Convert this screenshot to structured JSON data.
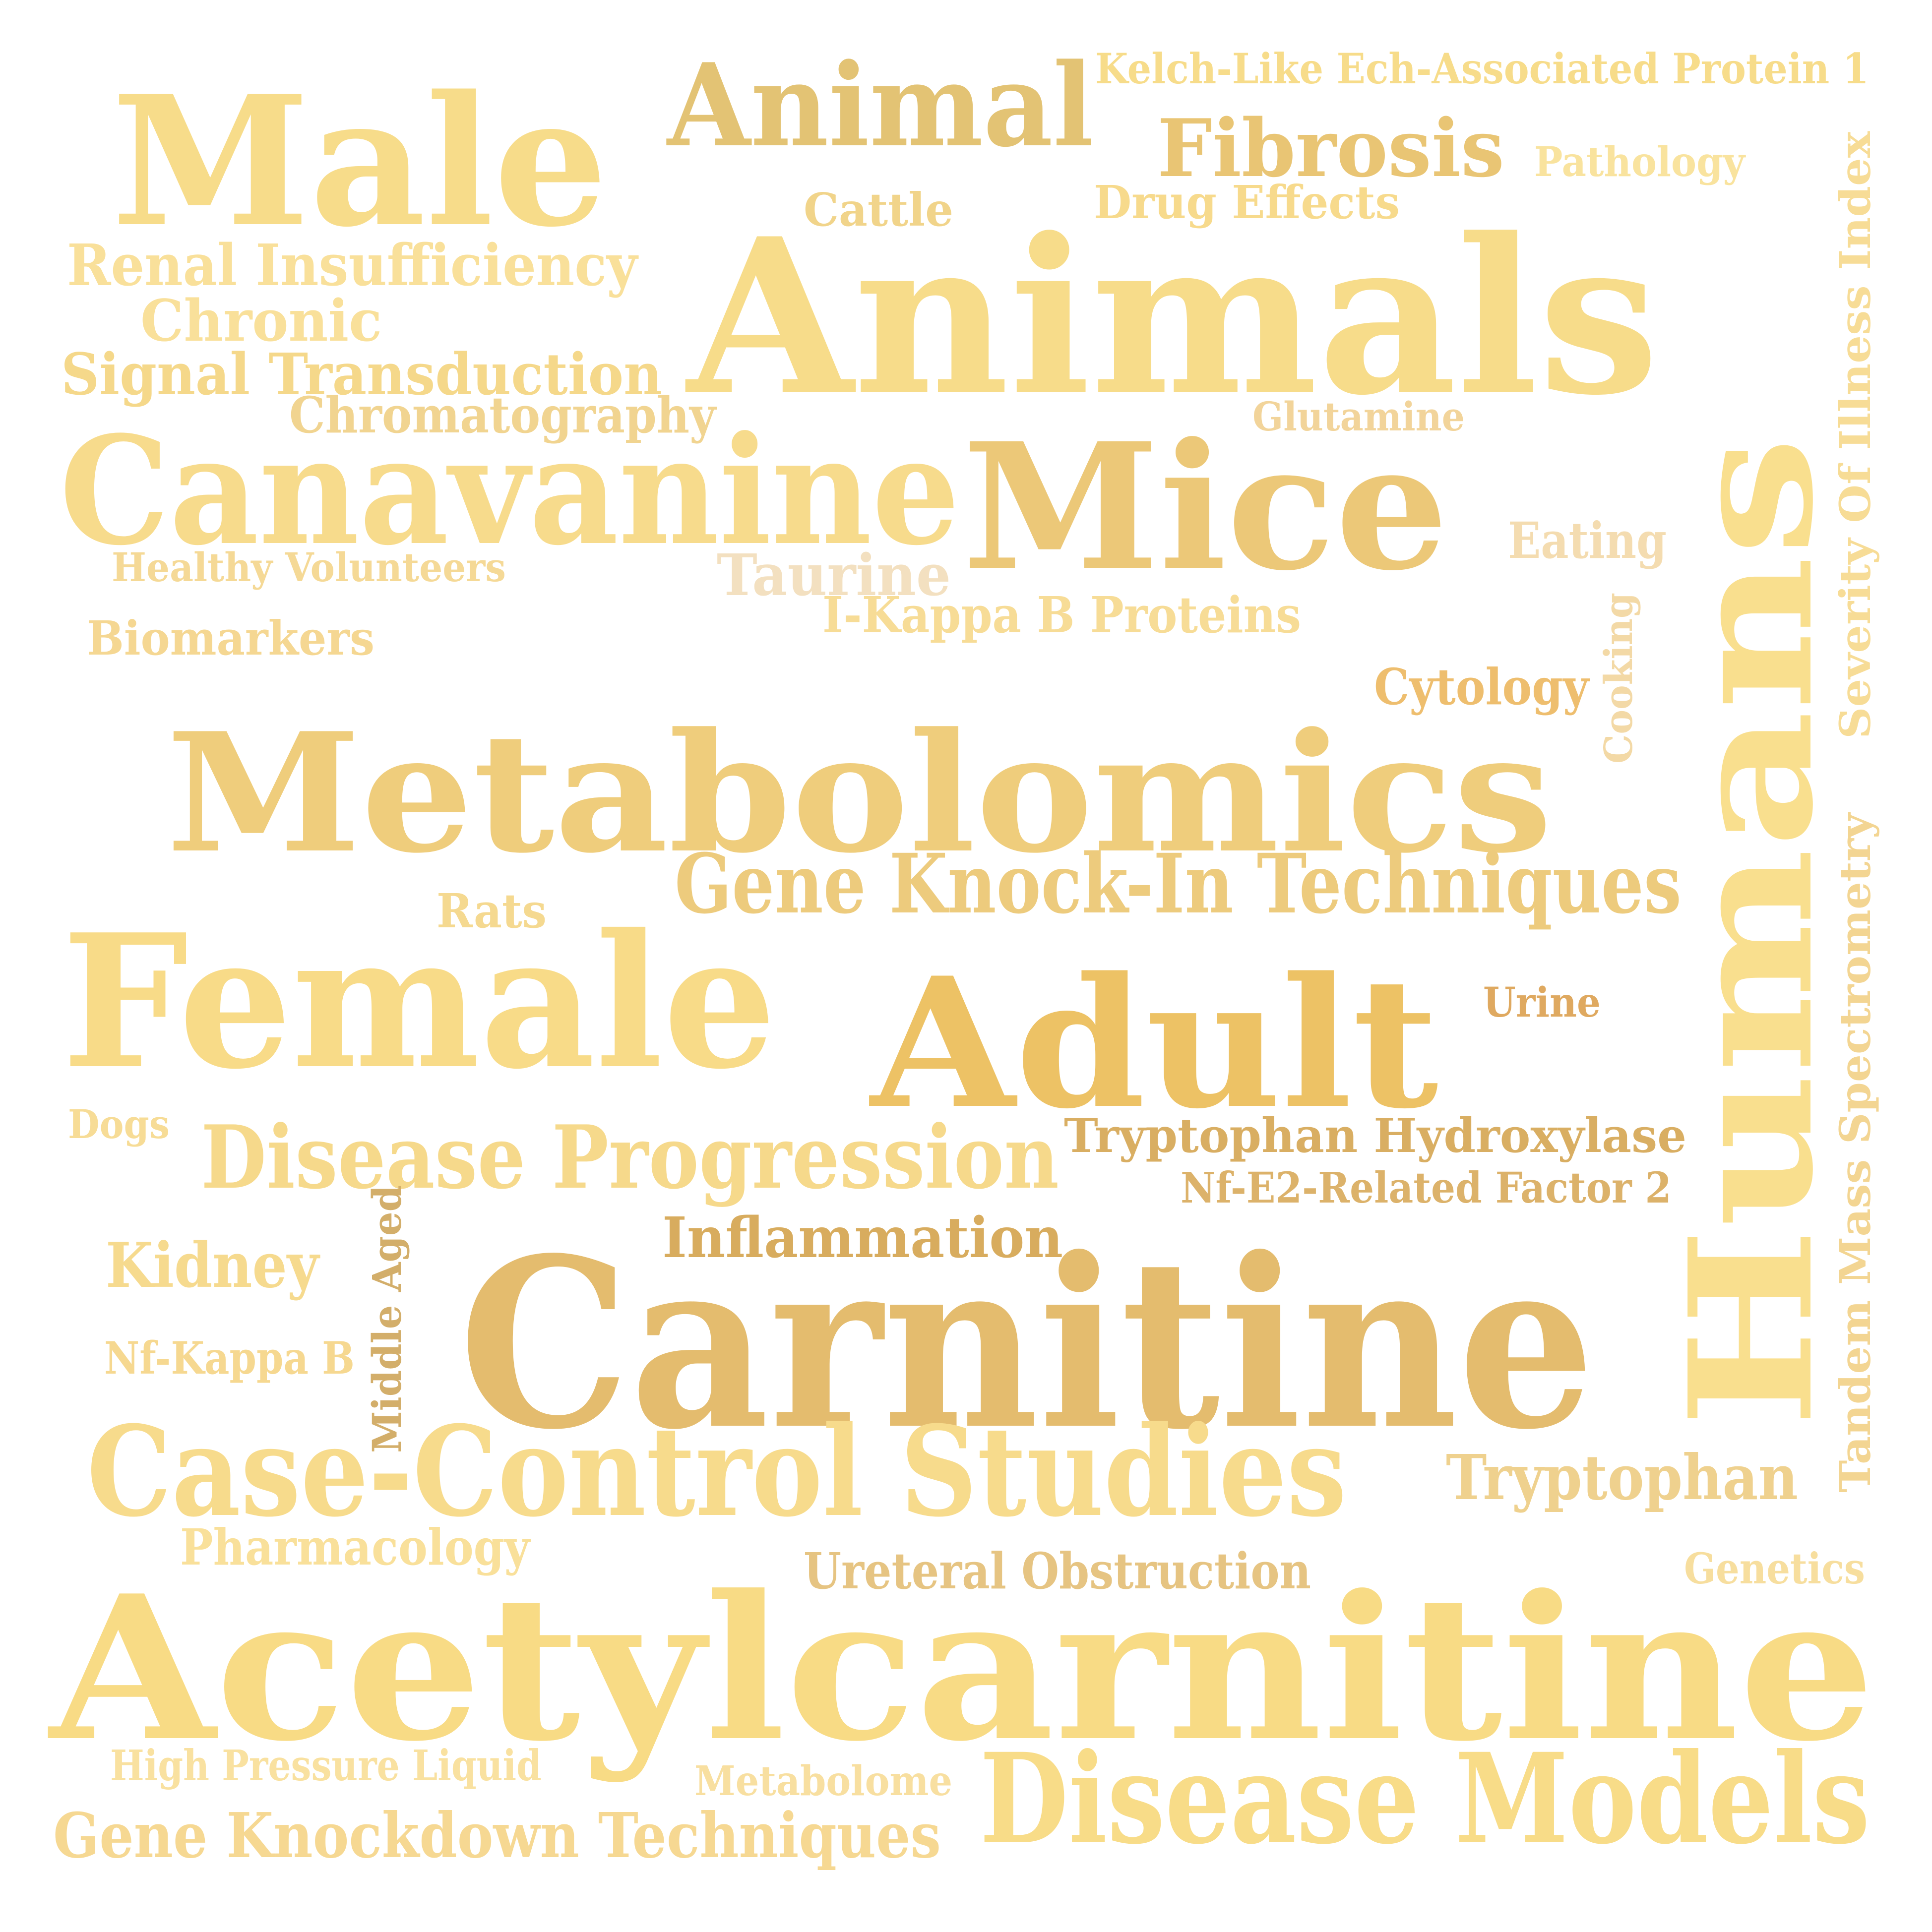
{
  "words": [
    {
      "id": "male",
      "text": "Male",
      "color": "#F7DC8A"
    },
    {
      "id": "animal",
      "text": "Animal",
      "color": "#E3C374"
    },
    {
      "id": "kelch",
      "text": "Kelch-Like Ech-Associated Protein 1",
      "color": "#F7DC8A"
    },
    {
      "id": "fibrosis",
      "text": "Fibrosis",
      "color": "#E9C574"
    },
    {
      "id": "pathology",
      "text": "Pathology",
      "color": "#F9E39E"
    },
    {
      "id": "cattle",
      "text": "Cattle",
      "color": "#F1D48A"
    },
    {
      "id": "drug-effects",
      "text": "Drug Effects",
      "color": "#F7DA8C"
    },
    {
      "id": "renal",
      "text": "Renal Insufficiency",
      "color": "#F9E09A"
    },
    {
      "id": "chronic",
      "text": "Chronic",
      "color": "#F9E09A"
    },
    {
      "id": "animals",
      "text": "Animals",
      "color": "#F7DC8A"
    },
    {
      "id": "signal",
      "text": "Signal Transduction",
      "color": "#F5D88A"
    },
    {
      "id": "chromatography",
      "text": "Chromatography",
      "color": "#F1D490"
    },
    {
      "id": "glutamine",
      "text": "Glutamine",
      "color": "#F2D49A"
    },
    {
      "id": "severity",
      "text": "Severity Of Illness Index",
      "color": "#F7DC96"
    },
    {
      "id": "canavanine",
      "text": "Canavanine",
      "color": "#F7DB8C"
    },
    {
      "id": "mice",
      "text": "Mice",
      "color": "#ECC878"
    },
    {
      "id": "humans",
      "text": "Humans",
      "color": "#F9DF8E"
    },
    {
      "id": "eating",
      "text": "Eating",
      "color": "#F4DCB0"
    },
    {
      "id": "healthy",
      "text": "Healthy Volunteers",
      "color": "#F5D996"
    },
    {
      "id": "taurine",
      "text": "Taurine",
      "color": "#F3E0C0"
    },
    {
      "id": "ikappab",
      "text": "I-Kappa B Proteins",
      "color": "#F7DC96"
    },
    {
      "id": "biomarkers",
      "text": "Biomarkers",
      "color": "#F5D792"
    },
    {
      "id": "cooking",
      "text": "Cooking",
      "color": "#F3D9A6"
    },
    {
      "id": "cytology",
      "text": "Cytology",
      "color": "#EEBE6E"
    },
    {
      "id": "metabolomics",
      "text": "Metabolomics",
      "color": "#EFCD7C"
    },
    {
      "id": "gene-knockin",
      "text": "Gene Knock-In Techniques",
      "color": "#EDCB7D"
    },
    {
      "id": "tandem",
      "text": "Tandem Mass Spectrometry",
      "color": "#F3D592"
    },
    {
      "id": "rats",
      "text": "Rats",
      "color": "#F5D990"
    },
    {
      "id": "female",
      "text": "Female",
      "color": "#F8DB88"
    },
    {
      "id": "adult",
      "text": "Adult",
      "color": "#EDC265"
    },
    {
      "id": "urine",
      "text": "Urine",
      "color": "#DFA960"
    },
    {
      "id": "dogs",
      "text": "Dogs",
      "color": "#F7DC96"
    },
    {
      "id": "disease-progression",
      "text": "Disease Progression",
      "color": "#F6D98B"
    },
    {
      "id": "tryptophan-hydroxylase",
      "text": "Tryptophan Hydroxylase",
      "color": "#D9AE62"
    },
    {
      "id": "nfe2",
      "text": "Nf-E2-Related Factor 2",
      "color": "#DCB26A"
    },
    {
      "id": "middle-aged",
      "text": "Middle Aged",
      "color": "#D3AE6A"
    },
    {
      "id": "inflammation",
      "text": "Inflammation",
      "color": "#D8AC5E"
    },
    {
      "id": "kidney",
      "text": "Kidney",
      "color": "#F6DA8E"
    },
    {
      "id": "carnitine",
      "text": "Carnitine",
      "color": "#E4BC6E"
    },
    {
      "id": "nfkappab",
      "text": "Nf-Kappa B",
      "color": "#F6D890"
    },
    {
      "id": "case-control",
      "text": "Case-Control Studies",
      "color": "#F7DB8C"
    },
    {
      "id": "tryptophan",
      "text": "Tryptophan",
      "color": "#EFD18E"
    },
    {
      "id": "pharmacology",
      "text": "Pharmacology",
      "color": "#F9E09A"
    },
    {
      "id": "ureteral",
      "text": "Ureteral Obstruction",
      "color": "#E6C482"
    },
    {
      "id": "genetics",
      "text": "Genetics",
      "color": "#F7DE9E"
    },
    {
      "id": "acetylcarnitine",
      "text": "Acetylcarnitine",
      "color": "#F8DB85"
    },
    {
      "id": "high-pressure",
      "text": "High Pressure Liquid",
      "color": "#F9E1A0"
    },
    {
      "id": "metabolome",
      "text": "Metabolome",
      "color": "#F8DFA0"
    },
    {
      "id": "disease-models",
      "text": "Disease Models",
      "color": "#F8DC88"
    },
    {
      "id": "gene-knockdown",
      "text": "Gene Knockdown Techniques",
      "color": "#F6D892"
    }
  ]
}
